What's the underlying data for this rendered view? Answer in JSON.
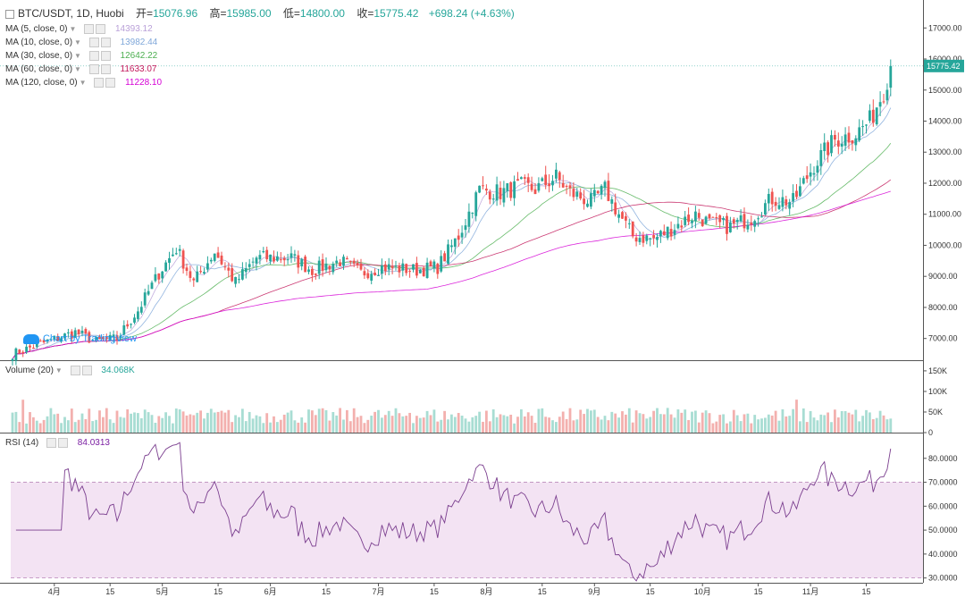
{
  "header": {
    "symbol": "BTC/USDT, 1D, Huobi",
    "open_label": "开=",
    "open": "15076.96",
    "high_label": "高=",
    "high": "15985.00",
    "low_label": "低=",
    "low": "14800.00",
    "close_label": "收=",
    "close": "15775.42",
    "change": "+698.24 (+4.63%)"
  },
  "indicators": [
    {
      "label": "MA (5, close, 0)",
      "value": "14393.12",
      "color": "#b9a0d8"
    },
    {
      "label": "MA (10, close, 0)",
      "value": "13982.44",
      "color": "#7fa7d9"
    },
    {
      "label": "MA (30, close, 0)",
      "value": "12642.22",
      "color": "#4caf50"
    },
    {
      "label": "MA (60, close, 0)",
      "value": "11633.07",
      "color": "#c2185b"
    },
    {
      "label": "MA (120, close, 0)",
      "value": "11228.10",
      "color": "#d500d5"
    }
  ],
  "volume_panel": {
    "label": "Volume (20)",
    "value": "34.068K",
    "value_color": "#26a69a"
  },
  "rsi_panel": {
    "label": "RSI (14)",
    "value": "84.0313",
    "value_color": "#7b1fa2"
  },
  "watermark": "Chart by TradingView",
  "colors": {
    "up": "#26a69a",
    "down": "#ef5350",
    "up_vol": "#a8ddd3",
    "down_vol": "#f3b0ae",
    "rsi_band": "#f3e3f3",
    "rsi_line": "#7b3f8f"
  },
  "chart_data": [
    {
      "type": "candlestick",
      "title": "BTC/USDT, 1D, Huobi",
      "x_ticks": [
        "4月",
        "15",
        "5月",
        "15",
        "6月",
        "15",
        "7月",
        "15",
        "8月",
        "15",
        "9月",
        "15",
        "10月",
        "15",
        "11月",
        "15"
      ],
      "y_ticks": [
        "7000.00",
        "8000.00",
        "9000.00",
        "10000.00",
        "11000.00",
        "12000.00",
        "13000.00",
        "14000.00",
        "15000.00",
        "16000.00",
        "17000.00"
      ],
      "ylim": [
        6300,
        17900
      ],
      "last_price_label": "15775.42",
      "close_anchors": [
        [
          0,
          6500
        ],
        [
          10,
          6900
        ],
        [
          18,
          7200
        ],
        [
          24,
          6900
        ],
        [
          30,
          7000
        ],
        [
          36,
          7900
        ],
        [
          42,
          9100
        ],
        [
          47,
          9900
        ],
        [
          52,
          8800
        ],
        [
          58,
          9800
        ],
        [
          64,
          8800
        ],
        [
          70,
          9600
        ],
        [
          80,
          9600
        ],
        [
          86,
          9200
        ],
        [
          94,
          9500
        ],
        [
          100,
          9100
        ],
        [
          106,
          9300
        ],
        [
          116,
          9200
        ],
        [
          122,
          9300
        ],
        [
          128,
          10300
        ],
        [
          134,
          11800
        ],
        [
          140,
          11700
        ],
        [
          146,
          11900
        ],
        [
          150,
          11800
        ],
        [
          156,
          12200
        ],
        [
          160,
          11700
        ],
        [
          166,
          11400
        ],
        [
          170,
          11800
        ],
        [
          174,
          11000
        ],
        [
          178,
          10300
        ],
        [
          184,
          10200
        ],
        [
          190,
          10600
        ],
        [
          196,
          11000
        ],
        [
          200,
          10700
        ],
        [
          206,
          10600
        ],
        [
          212,
          10900
        ],
        [
          218,
          11500
        ],
        [
          224,
          11400
        ],
        [
          230,
          12600
        ],
        [
          236,
          13400
        ],
        [
          242,
          13600
        ],
        [
          246,
          14000
        ],
        [
          250,
          15000
        ],
        [
          252,
          15775
        ]
      ]
    },
    {
      "type": "bar",
      "title": "Volume (20)",
      "y_ticks": [
        "0",
        "50K",
        "100K",
        "150K"
      ],
      "ylim": [
        0,
        165000
      ],
      "last_value": "34.068K"
    },
    {
      "type": "line",
      "title": "RSI (14)",
      "y_ticks": [
        "30.0000",
        "40.0000",
        "50.0000",
        "60.0000",
        "70.0000",
        "80.0000"
      ],
      "ylim": [
        28,
        90
      ],
      "band": [
        30,
        70
      ],
      "last_value": "84.0313"
    }
  ]
}
